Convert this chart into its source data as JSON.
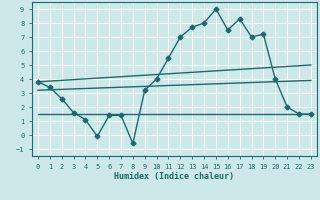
{
  "xlabel": "Humidex (Indice chaleur)",
  "xlim": [
    -0.5,
    23.5
  ],
  "ylim": [
    -1.5,
    9.5
  ],
  "yticks": [
    -1,
    0,
    1,
    2,
    3,
    4,
    5,
    6,
    7,
    8,
    9
  ],
  "xticks": [
    0,
    1,
    2,
    3,
    4,
    5,
    6,
    7,
    8,
    9,
    10,
    11,
    12,
    13,
    14,
    15,
    16,
    17,
    18,
    19,
    20,
    21,
    22,
    23
  ],
  "bg_color": "#cde8e8",
  "line_color": "#1a6b6b",
  "grid_color": "#ffffff",
  "line1_x": [
    0,
    1,
    2,
    3,
    4,
    5,
    6,
    7,
    8,
    9,
    10,
    11,
    12,
    13,
    14,
    15,
    16,
    17,
    18,
    19,
    20,
    21,
    22,
    23
  ],
  "line1_y": [
    3.8,
    3.4,
    2.6,
    1.6,
    1.1,
    -0.1,
    1.4,
    1.4,
    -0.6,
    3.2,
    4.0,
    5.5,
    7.0,
    7.7,
    8.0,
    9.0,
    7.5,
    8.3,
    7.0,
    7.2,
    4.0,
    2.0,
    1.5,
    1.5
  ],
  "line2_x": [
    0,
    23
  ],
  "line2_y": [
    3.8,
    5.0
  ],
  "line3_x": [
    0,
    23
  ],
  "line3_y": [
    3.2,
    3.9
  ],
  "line4_x": [
    0,
    23
  ],
  "line4_y": [
    1.5,
    1.5
  ],
  "marker": "D",
  "markersize": 2.5,
  "linewidth": 1.0
}
